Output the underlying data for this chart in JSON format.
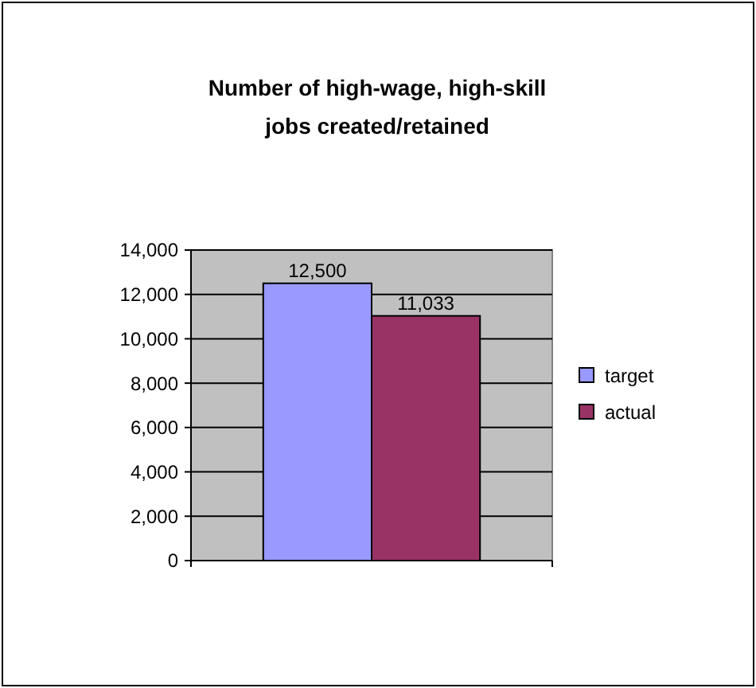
{
  "chart_data": {
    "type": "bar",
    "title": "Number of high-wage, high-skill jobs created/retained",
    "categories": [
      null
    ],
    "series": [
      {
        "name": "target",
        "color": "#9999ff",
        "values": [
          12500
        ]
      },
      {
        "name": "actual",
        "color": "#993366",
        "values": [
          11033
        ]
      }
    ],
    "ylim": [
      0,
      14000
    ],
    "yticks": [
      {
        "value": 0,
        "label": "0"
      },
      {
        "value": 2000,
        "label": "2,000"
      },
      {
        "value": 4000,
        "label": "4,000"
      },
      {
        "value": 6000,
        "label": "6,000"
      },
      {
        "value": 8000,
        "label": "8,000"
      },
      {
        "value": 10000,
        "label": "10,000"
      },
      {
        "value": 12000,
        "label": "12,000"
      },
      {
        "value": 14000,
        "label": "14,000"
      }
    ],
    "value_labels": [
      "12,500",
      "11,033"
    ],
    "grid": "y",
    "legend": "right"
  }
}
